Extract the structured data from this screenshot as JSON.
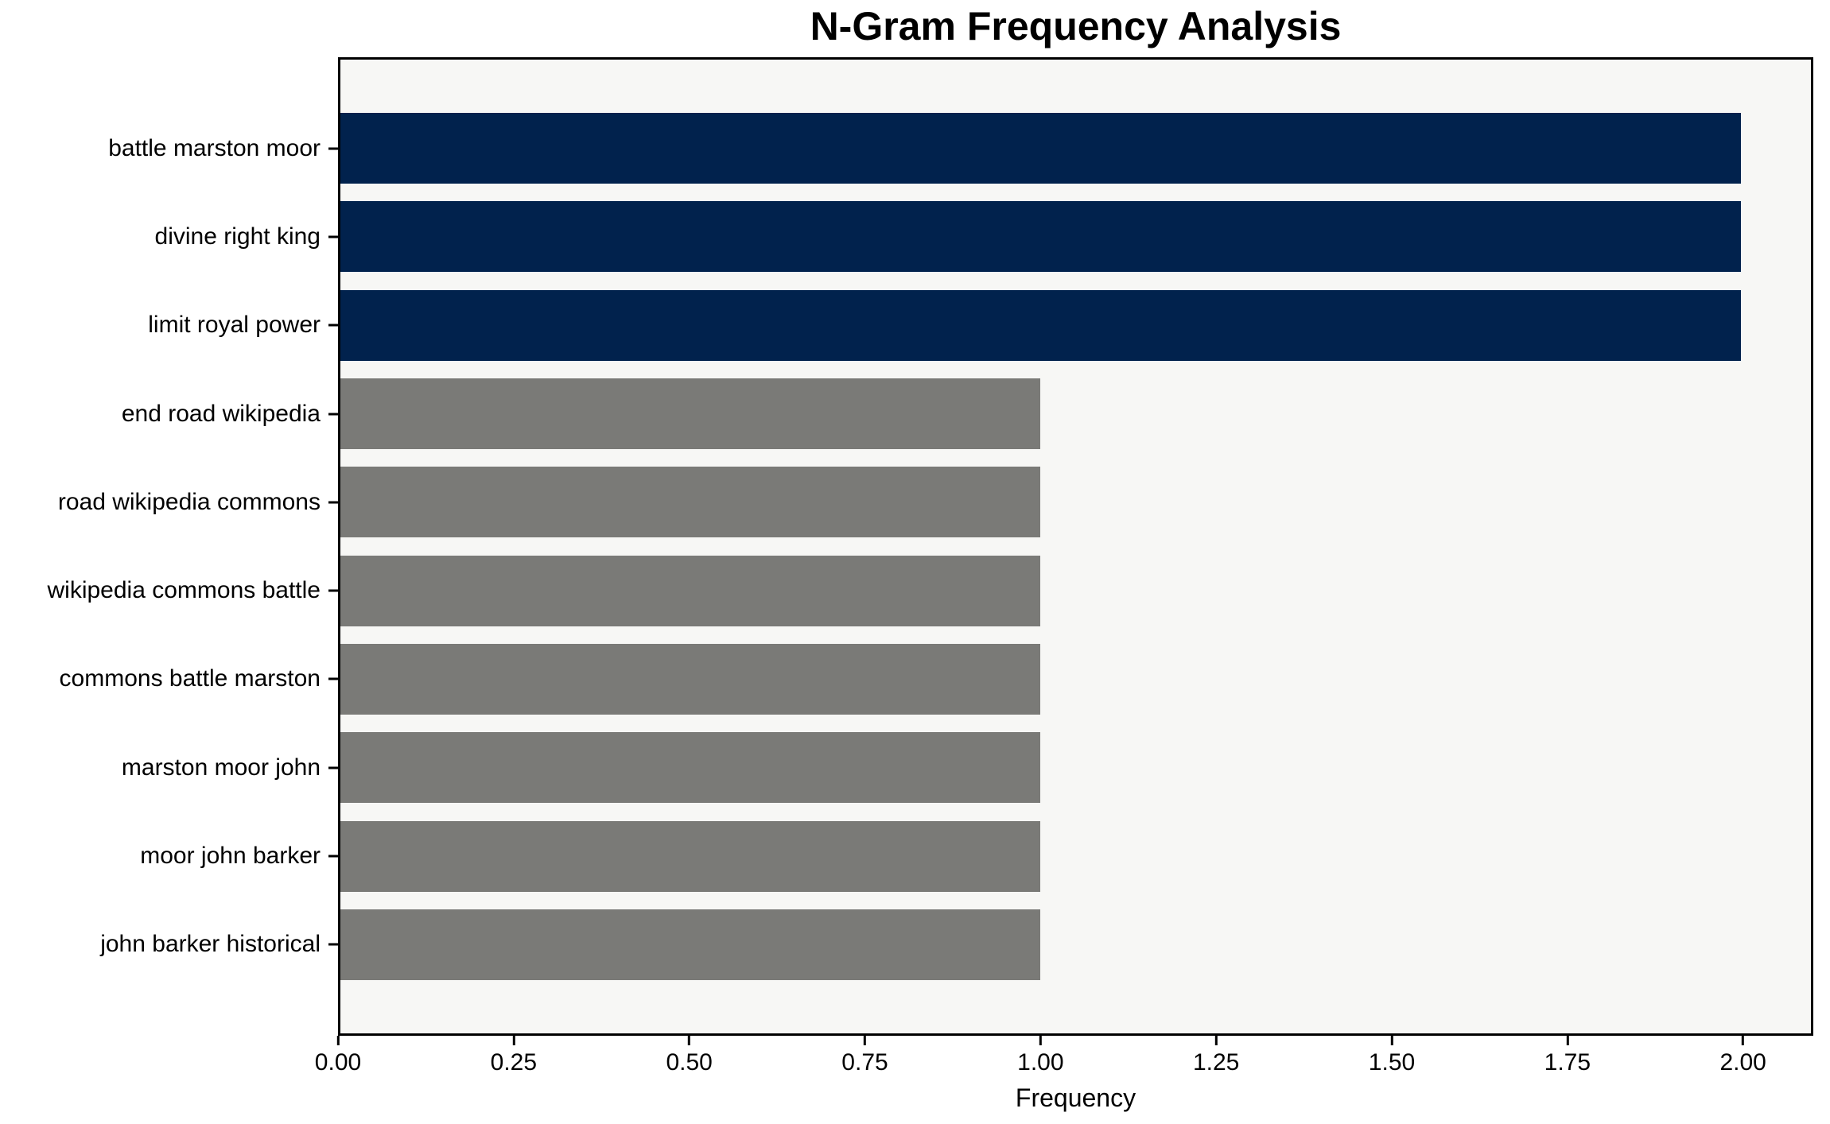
{
  "chart_data": {
    "type": "bar",
    "orientation": "horizontal",
    "title": "N-Gram Frequency Analysis",
    "xlabel": "Frequency",
    "ylabel": "",
    "categories": [
      "battle marston moor",
      "divine right king",
      "limit royal power",
      "end road wikipedia",
      "road wikipedia commons",
      "wikipedia commons battle",
      "commons battle marston",
      "marston moor john",
      "moor john barker",
      "john barker historical"
    ],
    "values": [
      2,
      2,
      2,
      1,
      1,
      1,
      1,
      1,
      1,
      1
    ],
    "bar_colors": [
      "#01224d",
      "#01224d",
      "#01224d",
      "#7a7a77",
      "#7a7a77",
      "#7a7a77",
      "#7a7a77",
      "#7a7a77",
      "#7a7a77",
      "#7a7a77"
    ],
    "xlim": [
      0,
      2.1
    ],
    "x_ticks": [
      0,
      0.25,
      0.5,
      0.75,
      1.0,
      1.25,
      1.5,
      1.75,
      2.0
    ],
    "x_tick_labels": [
      "0.00",
      "0.25",
      "0.50",
      "0.75",
      "1.00",
      "1.25",
      "1.50",
      "1.75",
      "2.00"
    ],
    "grid": false,
    "legend": false,
    "colors": {
      "highlight_bar": "#01224d",
      "default_bar": "#7a7a77",
      "plot_background": "#f7f7f5",
      "figure_background": "#ffffff",
      "spine": "#000000",
      "text": "#000000"
    }
  }
}
